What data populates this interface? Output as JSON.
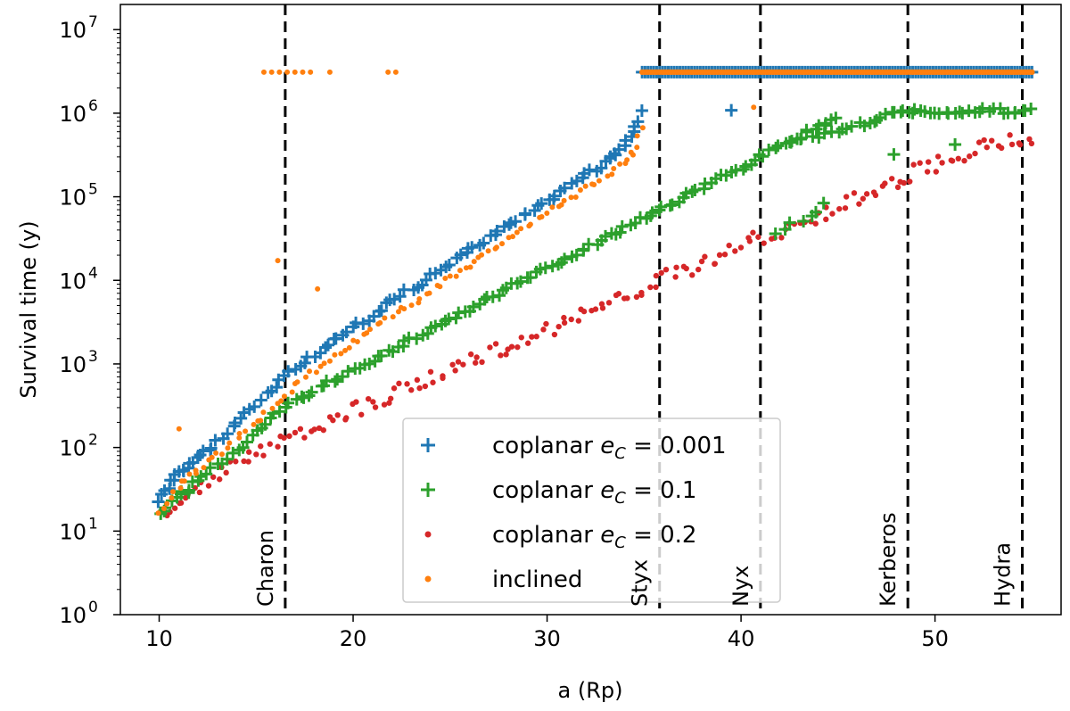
{
  "chart_data": {
    "type": "scatter",
    "xlabel": "a (Rp)",
    "ylabel": "Survival time (y)",
    "yscale": "log",
    "xlim": [
      8,
      56.5
    ],
    "ylim": [
      1,
      20000000
    ],
    "xticks": [
      10,
      20,
      30,
      40,
      50
    ],
    "yticks": [
      {
        "value": 1,
        "base": "10",
        "exp": "0"
      },
      {
        "value": 10,
        "base": "10",
        "exp": "1"
      },
      {
        "value": 100,
        "base": "10",
        "exp": "2"
      },
      {
        "value": 1000,
        "base": "10",
        "exp": "3"
      },
      {
        "value": 10000,
        "base": "10",
        "exp": "4"
      },
      {
        "value": 100000,
        "base": "10",
        "exp": "5"
      },
      {
        "value": 1000000,
        "base": "10",
        "exp": "6"
      },
      {
        "value": 10000000,
        "base": "10",
        "exp": "7"
      }
    ],
    "moons": [
      {
        "name": "Charon",
        "a": 16.5,
        "label_style": "black"
      },
      {
        "name": "Styx",
        "a": 35.8,
        "label_style": "faded"
      },
      {
        "name": "Nyx",
        "a": 41.0,
        "label_style": "faded"
      },
      {
        "name": "Kerberos",
        "a": 48.6,
        "label_style": "black"
      },
      {
        "name": "Hydra",
        "a": 54.5,
        "label_style": "black"
      }
    ],
    "legend": {
      "location": "lower-center",
      "entries": [
        {
          "series": "coplanar_e0001",
          "prefix": "coplanar ",
          "math": "e",
          "sub": "C",
          "value": " = 0.001"
        },
        {
          "series": "coplanar_e01",
          "prefix": "coplanar ",
          "math": "e",
          "sub": "C",
          "value": " = 0.1"
        },
        {
          "series": "coplanar_e02",
          "prefix": "coplanar ",
          "math": "e",
          "sub": "C",
          "value": " = 0.2"
        },
        {
          "series": "inclined",
          "prefix": "inclined",
          "math": "",
          "sub": "",
          "value": ""
        }
      ]
    },
    "series": [
      {
        "id": "coplanar_e0001",
        "name": "coplanar e_C = 0.001",
        "marker": "plus",
        "color": "#1f77b4",
        "x": [
          10,
          10.3,
          10.6,
          10.9,
          11.2,
          11.5,
          11.8,
          12.2,
          12.6,
          13,
          13.5,
          14,
          14.5,
          15,
          15.5,
          16,
          16.5,
          17,
          17.5,
          18,
          18.5,
          19,
          19.5,
          20,
          20.5,
          21,
          21.5,
          22,
          22.5,
          23,
          23.5,
          24,
          24.5,
          25,
          25.5,
          26,
          26.5,
          27,
          27.5,
          28,
          28.5,
          29,
          29.5,
          30,
          30.5,
          31,
          31.5,
          32,
          32.5,
          33,
          33.3,
          33.6,
          34,
          34.3,
          34.6,
          34.8,
          39.4
        ],
        "y": [
          22,
          30,
          38,
          45,
          52,
          60,
          68,
          80,
          95,
          115,
          150,
          190,
          250,
          330,
          430,
          560,
          720,
          900,
          1080,
          1300,
          1550,
          1850,
          2200,
          2650,
          3150,
          3800,
          4600,
          5500,
          6600,
          7900,
          9400,
          11200,
          13300,
          15800,
          18900,
          22500,
          27000,
          32000,
          38000,
          45000,
          54000,
          64000,
          76000,
          91000,
          108000,
          128000,
          152000,
          180000,
          215000,
          250000,
          300000,
          350000,
          430000,
          520000,
          650000,
          1100000,
          1150000
        ]
      },
      {
        "id": "coplanar_e01",
        "name": "coplanar e_C = 0.1",
        "marker": "plus",
        "color": "#2ca02c",
        "x": [
          10,
          10.4,
          10.8,
          11.2,
          11.6,
          12,
          12.5,
          13,
          13.5,
          14,
          14.5,
          15,
          15.5,
          16,
          16.5,
          17,
          17.5,
          18,
          18.5,
          19,
          19.5,
          20,
          20.5,
          21,
          21.5,
          22,
          22.5,
          23,
          23.5,
          24,
          24.5,
          25,
          25.5,
          26,
          26.5,
          27,
          27.5,
          28,
          28.5,
          29,
          29.5,
          30,
          30.5,
          31,
          31.5,
          32,
          32.5,
          33,
          33.5,
          34,
          34.5,
          35,
          35.5,
          36,
          36.5,
          37,
          37.5,
          38,
          38.5,
          39,
          39.5,
          40,
          40.5,
          41,
          41.5,
          42,
          42.5,
          43,
          43.5,
          44,
          44.5,
          45,
          41.8,
          42.6,
          43.6,
          44.3,
          47.9,
          50.9,
          42.5,
          43.2,
          44,
          44.8,
          45.3,
          45.8,
          46.3,
          46.8,
          47.3,
          47.8,
          48.2,
          48.6,
          49,
          49.5,
          50,
          50.5,
          51,
          51.5,
          52,
          52.5,
          53,
          53.5,
          54,
          54.5,
          55
        ],
        "y": [
          17,
          20,
          24,
          28,
          33,
          40,
          48,
          60,
          75,
          95,
          120,
          150,
          190,
          240,
          290,
          350,
          410,
          480,
          560,
          640,
          740,
          850,
          980,
          1120,
          1290,
          1480,
          1700,
          1960,
          2250,
          2600,
          3000,
          3450,
          3970,
          4560,
          5250,
          6040,
          6950,
          8000,
          9200,
          10600,
          12200,
          14000,
          16100,
          18500,
          21300,
          24500,
          28200,
          32400,
          37300,
          42900,
          49300,
          56700,
          65200,
          75000,
          86200,
          99000,
          114000,
          130000,
          149000,
          171000,
          197000,
          226000,
          260000,
          299000,
          344000,
          395000,
          455000,
          520000,
          600000,
          690000,
          790000,
          910000,
          35000,
          50000,
          60000,
          80000,
          330000,
          420000,
          450000,
          480000,
          550000,
          600000,
          640000,
          690000,
          750000,
          810000,
          880000,
          960000,
          1010000,
          1060000,
          1060000,
          1060000,
          1060000,
          1060000,
          1060000,
          1060000,
          1060000,
          1060000,
          1060000,
          1060000,
          1060000,
          1060000,
          1060000
        ]
      },
      {
        "id": "coplanar_e02",
        "name": "coplanar e_C = 0.2",
        "marker": "dot",
        "color": "#d62728",
        "x": [
          10,
          10.4,
          10.8,
          11.2,
          11.6,
          12,
          12.5,
          13,
          13.5,
          14,
          14.5,
          15,
          15.5,
          16,
          16.5,
          17,
          17.5,
          18,
          18.5,
          19,
          19.5,
          20,
          20.5,
          21,
          21.5,
          22,
          22.5,
          23,
          23.5,
          24,
          24.5,
          25,
          25.5,
          26,
          26.5,
          27,
          27.5,
          28,
          28.5,
          29,
          29.5,
          30,
          30.5,
          31,
          31.5,
          32,
          32.5,
          33,
          33.5,
          34,
          34.5,
          35,
          35.5,
          36,
          36.5,
          37,
          37.5,
          38,
          38.5,
          39,
          39.5,
          40,
          40.5,
          41,
          41.5,
          42,
          42.5,
          43,
          43.5,
          44,
          44.5,
          45,
          45.5,
          46,
          46.5,
          47,
          47.5,
          48,
          48.5,
          49,
          49.5,
          50,
          50.5,
          51,
          51.5,
          52,
          52.5,
          53,
          53.5,
          54,
          54.5,
          55
        ],
        "y": [
          14,
          17,
          21,
          25,
          30,
          35,
          42,
          50,
          58,
          66,
          75,
          85,
          96,
          110,
          125,
          140,
          157,
          175,
          196,
          220,
          246,
          275,
          308,
          345,
          386,
          432,
          484,
          542,
          607,
          680,
          762,
          853,
          955,
          1070,
          1200,
          1340,
          1500,
          1680,
          1880,
          2100,
          2360,
          2640,
          2960,
          3310,
          3700,
          4150,
          4640,
          5200,
          5820,
          6520,
          7300,
          8170,
          9150,
          10200,
          11500,
          12800,
          14400,
          16100,
          18000,
          20200,
          22600,
          25300,
          28300,
          31700,
          35500,
          39800,
          44600,
          49900,
          55900,
          62600,
          70100,
          78500,
          87900,
          98500,
          110000,
          123000,
          138000,
          155000,
          173000,
          194000,
          217000,
          243000,
          270000,
          300000,
          330000,
          360000,
          390000,
          420000,
          440000,
          460000,
          480000,
          500000
        ],
        "jitter_scatter": true
      },
      {
        "id": "inclined",
        "name": "inclined",
        "marker": "dot",
        "color": "#ff7f0e",
        "x": [
          10,
          10.4,
          10.8,
          11.2,
          11.6,
          12,
          12.5,
          13,
          13.5,
          14,
          14.5,
          15,
          15.5,
          16,
          16.5,
          17,
          17.5,
          18,
          18.5,
          19,
          19.5,
          20,
          20.5,
          21,
          21.5,
          22,
          22.5,
          23,
          23.5,
          24,
          24.5,
          25,
          25.5,
          26,
          26.5,
          27,
          27.5,
          28,
          28.5,
          29,
          29.5,
          30,
          30.5,
          31,
          31.5,
          32,
          32.5,
          33,
          33.5,
          34,
          34.3,
          34.6,
          34.8,
          11,
          16.2,
          18.2,
          40.6
        ],
        "y": [
          17,
          22,
          30,
          38,
          46,
          55,
          66,
          80,
          100,
          125,
          160,
          200,
          255,
          330,
          420,
          540,
          680,
          850,
          1030,
          1250,
          1500,
          1800,
          2150,
          2580,
          3080,
          3700,
          4420,
          5300,
          6330,
          7550,
          9030,
          10800,
          12900,
          15400,
          18400,
          22000,
          26300,
          31400,
          37500,
          44800,
          53500,
          64000,
          76000,
          90000,
          106000,
          126000,
          150000,
          180000,
          215000,
          260000,
          320000,
          400000,
          700000,
          170,
          18000,
          8000,
          1250000
        ]
      }
    ],
    "bands": [
      {
        "series": "coplanar_e0001",
        "y": 3100000,
        "x_from": 34.9,
        "x_to": 55.0
      },
      {
        "series": "inclined",
        "y": 3100000,
        "x_from": 34.9,
        "x_to": 55.0
      },
      {
        "series": "inclined",
        "y": 3100000,
        "x_list": [
          15.4,
          15.8,
          16.2,
          16.6,
          17.0,
          17.4,
          17.8,
          18.8,
          21.8,
          22.2
        ]
      }
    ]
  }
}
